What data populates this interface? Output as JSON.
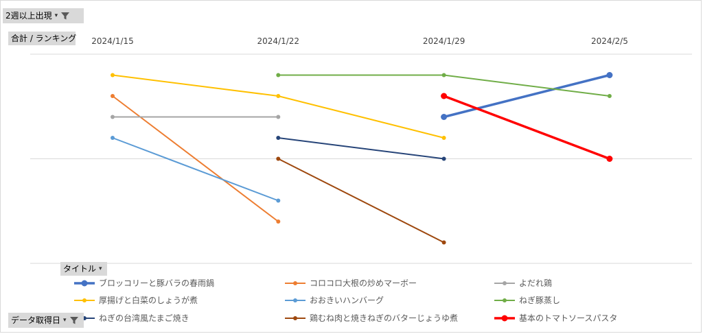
{
  "filter_field": {
    "label": "2週以上出現",
    "icon": "filter-icon",
    "dropdown": "▾"
  },
  "row_field": {
    "label": "合計 / ランキング"
  },
  "legend_field": {
    "label": "タイトル",
    "dropdown": "▾"
  },
  "date_field": {
    "label": "データ取得日",
    "icon": "filter-icon",
    "dropdown": "▾"
  },
  "chart_data": {
    "type": "line",
    "categories": [
      "2024/1/15",
      "2024/1/22",
      "2024/1/29",
      "2024/2/5"
    ],
    "ylim": [
      0,
      9
    ],
    "y_reversed": true,
    "y_ticks_shown": false,
    "grid": true,
    "legend_position": "bottom",
    "series": [
      {
        "name": "ブロッコリーと豚バラの春雨鍋",
        "color": "#4472C4",
        "bold": true,
        "values": [
          null,
          null,
          3,
          1
        ]
      },
      {
        "name": "コロコロ大根の炒めマーボー",
        "color": "#ED7D31",
        "bold": false,
        "values": [
          2,
          8,
          null,
          null
        ]
      },
      {
        "name": "よだれ鶏",
        "color": "#A5A5A5",
        "bold": false,
        "values": [
          3,
          3,
          null,
          null
        ]
      },
      {
        "name": "厚揚げと白菜のしょうが煮",
        "color": "#FFC000",
        "bold": false,
        "values": [
          1,
          2,
          4,
          null
        ]
      },
      {
        "name": "おおきいハンバーグ",
        "color": "#5B9BD5",
        "bold": false,
        "values": [
          4,
          7,
          null,
          null
        ]
      },
      {
        "name": "ねぎ豚蒸し",
        "color": "#70AD47",
        "bold": false,
        "values": [
          null,
          1,
          1,
          2
        ]
      },
      {
        "name": "ねぎの台湾風たまご焼き",
        "color": "#264478",
        "bold": false,
        "values": [
          null,
          4,
          5,
          null
        ]
      },
      {
        "name": "鶏むね肉と焼きねぎのバターじょうゆ煮",
        "color": "#9E480E",
        "bold": false,
        "values": [
          null,
          5,
          9,
          null
        ]
      },
      {
        "name": "基本のトマトソースパスタ",
        "color": "#FF0000",
        "bold": true,
        "values": [
          null,
          null,
          2,
          5
        ]
      }
    ]
  }
}
